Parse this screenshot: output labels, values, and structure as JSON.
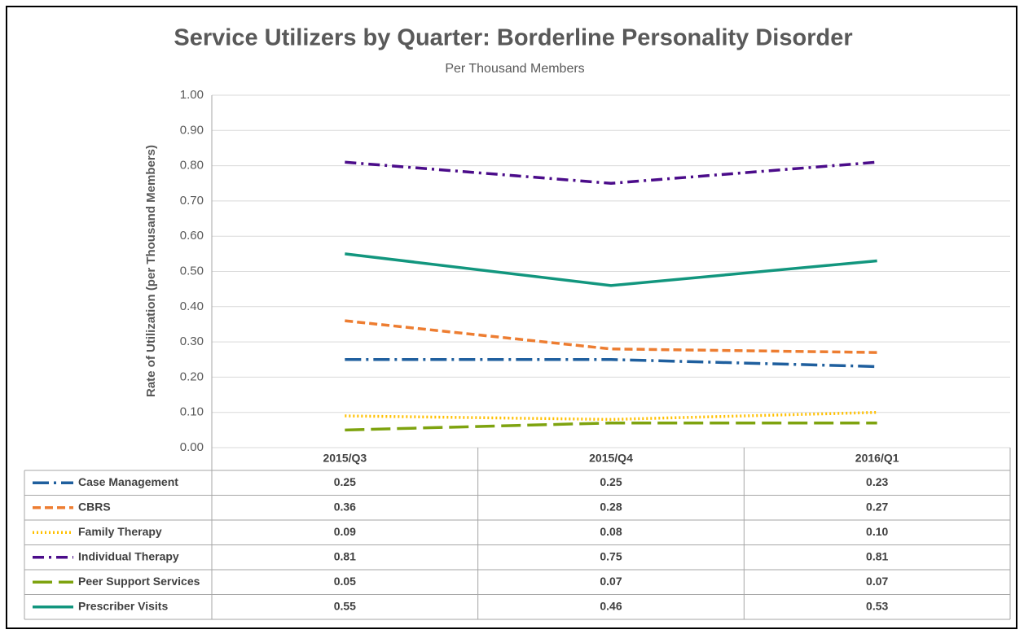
{
  "chart_data": {
    "type": "line",
    "title": "Service Utilizers by Quarter: Borderline Personality Disorder",
    "subtitle": "Per Thousand Members",
    "y_label": "Rate of Utilization (per Thousand Members)",
    "categories": [
      "2015/Q3",
      "2015/Q4",
      "2016/Q1"
    ],
    "ylim": [
      0,
      1
    ],
    "yticks": [
      {
        "value": 0,
        "label": "0.00"
      },
      {
        "value": 0.1,
        "label": "0.10"
      },
      {
        "value": 0.2,
        "label": "0.20"
      },
      {
        "value": 0.3,
        "label": "0.30"
      },
      {
        "value": 0.4,
        "label": "0.40"
      },
      {
        "value": 0.5,
        "label": "0.50"
      },
      {
        "value": 0.6,
        "label": "0.60"
      },
      {
        "value": 0.7,
        "label": "0.70"
      },
      {
        "value": 0.8,
        "label": "0.80"
      },
      {
        "value": 0.9,
        "label": "0.90"
      },
      {
        "value": 1,
        "label": "1.00"
      }
    ],
    "grid": true,
    "series": [
      {
        "name": "Case Management",
        "color": "#1f5f9e",
        "values": [
          0.25,
          0.25,
          0.23
        ],
        "value_labels": [
          "0.25",
          "0.25",
          "0.23"
        ]
      },
      {
        "name": "CBRS",
        "color": "#ed7d31",
        "values": [
          0.36,
          0.28,
          0.27
        ],
        "value_labels": [
          "0.36",
          "0.28",
          "0.27"
        ]
      },
      {
        "name": "Family Therapy",
        "color": "#ffc000",
        "values": [
          0.09,
          0.08,
          0.1
        ],
        "value_labels": [
          "0.09",
          "0.08",
          "0.10"
        ]
      },
      {
        "name": "Individual Therapy",
        "color": "#4b0c8a",
        "values": [
          0.81,
          0.75,
          0.81
        ],
        "value_labels": [
          "0.81",
          "0.75",
          "0.81"
        ]
      },
      {
        "name": "Peer Support Services",
        "color": "#7ea30f",
        "values": [
          0.05,
          0.07,
          0.07
        ],
        "value_labels": [
          "0.05",
          "0.07",
          "0.07"
        ]
      },
      {
        "name": "Prescriber Visits",
        "color": "#12967e",
        "values": [
          0.55,
          0.46,
          0.53
        ],
        "value_labels": [
          "0.55",
          "0.46",
          "0.53"
        ]
      }
    ]
  }
}
